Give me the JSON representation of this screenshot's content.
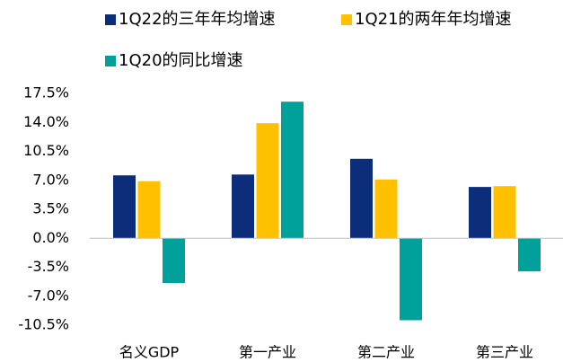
{
  "chart_data": {
    "type": "bar",
    "categories": [
      "名义GDP",
      "第一产业",
      "第二产业",
      "第三产业"
    ],
    "series": [
      {
        "name": "1Q22的三年年均增速",
        "color": "#0b2d7a",
        "values": [
          7.6,
          7.7,
          9.6,
          6.2
        ]
      },
      {
        "name": "1Q21的两年年均增速",
        "color": "#ffc000",
        "values": [
          6.9,
          13.9,
          7.1,
          6.3
        ]
      },
      {
        "name": "1Q20的同比增速",
        "color": "#00a19a",
        "values": [
          -5.4,
          16.5,
          -9.9,
          -4.0
        ]
      }
    ],
    "ylim": [
      -10.5,
      17.5
    ],
    "yticks": [
      {
        "value": -10.5,
        "label": "-10.5%"
      },
      {
        "value": -7.0,
        "label": "-7.0%"
      },
      {
        "value": -3.5,
        "label": "-3.5%"
      },
      {
        "value": 0,
        "label": "0.0%"
      },
      {
        "value": 3.5,
        "label": "3.5%"
      },
      {
        "value": 7.0,
        "label": "7.0%"
      },
      {
        "value": 10.5,
        "label": "10.5%"
      },
      {
        "value": 14.0,
        "label": "14.0%"
      },
      {
        "value": 17.5,
        "label": "17.5%"
      }
    ],
    "grid": false
  }
}
